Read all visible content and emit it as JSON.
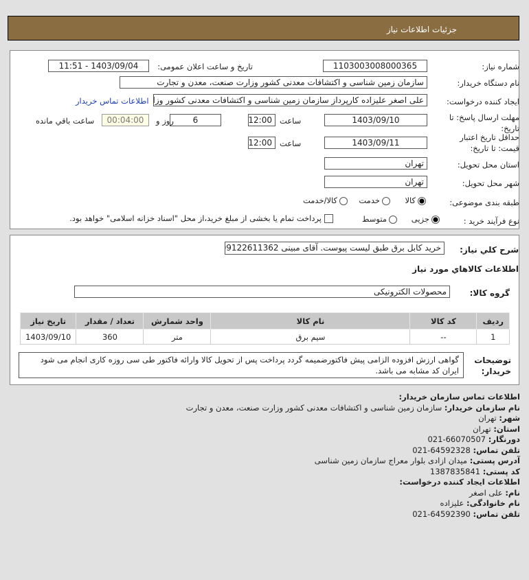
{
  "title": "جزئیات اطلاعات نیاز",
  "form": {
    "need_number_label": "شماره نیاز:",
    "need_number": "1103003008000365",
    "announce_label": "تاریخ و ساعت اعلان عمومی:",
    "announce_value": "1403/09/04 - 11:51",
    "buyer_org_label": "نام دستگاه خریدار:",
    "buyer_org": "سازمان زمین شناسی و اکتشافات معدنی کشور وزارت صنعت، معدن و تجارت",
    "creator_label": "ایجاد کننده درخواست:",
    "creator": "علی اصغر علیزاده کارپرداز سازمان زمین شناسی و اکتشافات معدنی کشور وزارت صنعت، معدن و تجارت",
    "contact_link": "اطلاعات تماس خریدار",
    "deadline_label_1": "مهلت ارسال پاسخ: تا",
    "deadline_label_2": "تاریخ:",
    "deadline_date": "1403/09/10",
    "time_label": "ساعت",
    "deadline_time": "12:00",
    "days": "6",
    "days_label": "روز و",
    "remaining": "00:04:00",
    "remaining_label": "ساعت باقي مانده",
    "validity_label_1": "حداقل تاریخ اعتبار",
    "validity_label_2": "قیمت: تا تاریخ:",
    "validity_date": "1403/09/11",
    "validity_time": "12:00",
    "province_label": "استان محل تحویل:",
    "province": "تهران",
    "city_label": "شهر محل تحویل:",
    "city": "تهران",
    "category_label": "طبقه بندی موضوعی:",
    "category_options": [
      "کالا",
      "خدمت",
      "کالا/خدمت"
    ],
    "category_selected": "کالا",
    "process_label": "نوع فرآیند خرید :",
    "process_options": [
      "جزیی",
      "متوسط"
    ],
    "process_selected": "جزیی",
    "payment_note": "پرداخت تمام یا بخشی از مبلغ خرید،از محل \"اسناد خزانه اسلامی\" خواهد بود."
  },
  "summary": {
    "desc_label": "شرح كلي نياز:",
    "desc": "خرید کابل برق طبق لیست پیوست. آقای مبینی 09122611362",
    "goods_heading": "اطلاعات كالاهاي مورد نياز",
    "group_label": "گروه کالا:",
    "group": "محصولات الکترونیکی",
    "table": {
      "headers": [
        "ردیف",
        "کد کالا",
        "نام کالا",
        "واحد شمارش",
        "تعداد / مقدار",
        "تاریخ نیاز"
      ],
      "rows": [
        [
          "1",
          "--",
          "سیم برق",
          "متر",
          "360",
          "1403/09/10"
        ]
      ]
    },
    "notes_label_1": "توضیحات",
    "notes_label_2": "خریدار:",
    "notes": "گواهی ارزش افزوده الزامی پیش فاکتورضمیمه گردد پرداخت پس از تحویل کالا وارائه فاکتور طی سی روزه کاری انجام می شود ایران کد مشابه می باشد."
  },
  "contacts": {
    "heading": "اطلاعات تماس سازمان خریدار:",
    "org_label": "نام سازمان خریدار:",
    "org": "سازمان زمین شناسی و اکتشافات معدنی کشور وزارت صنعت، معدن و تجارت",
    "city_label": "شهر:",
    "city": "تهران",
    "province_label": "استان:",
    "province": "تهران",
    "fax_label": "دورنگار:",
    "fax": "66070507-021",
    "phone_label": "تلفن تماس:",
    "phone": "64592328-021",
    "address_label": "آدرس پستی:",
    "address": "میدان ازادی بلوار معراج سازمان زمین شناسی",
    "postal_label": "کد پستی:",
    "postal": "1387835841",
    "creator_heading": "اطلاعات ایجاد کننده درخواست:",
    "name_label": "نام:",
    "name": "علی اصغر",
    "family_label": "نام خانوادگی:",
    "family": "علیزاده",
    "creator_phone_label": "تلفن تماس:",
    "creator_phone": "64592390-021"
  }
}
